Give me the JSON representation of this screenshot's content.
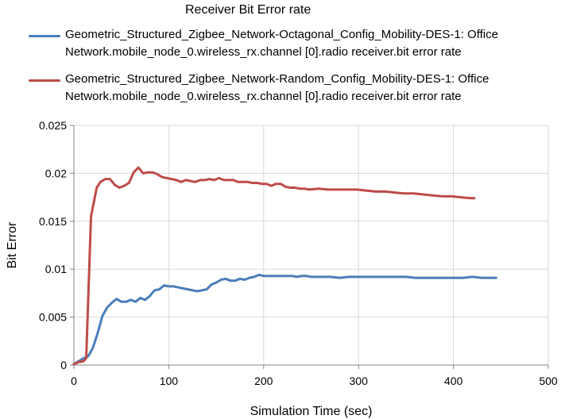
{
  "chart_data": {
    "type": "line",
    "title": "Receiver Bit Error rate",
    "xlabel": "Simulation Time (sec)",
    "ylabel": "Bit Error",
    "xlim": [
      0,
      500
    ],
    "ylim": [
      0,
      0.025
    ],
    "x_ticks": [
      "0",
      "100",
      "200",
      "300",
      "400",
      "500"
    ],
    "y_ticks": [
      "0",
      "0.005",
      "0.01",
      "0.015",
      "0.02",
      "0.025"
    ],
    "grid": true,
    "legend_position": "top",
    "series": [
      {
        "name": "Geometric_Structured_Zigbee_Network-Octagonal_Config_Mobility-DES-1: Office Network.mobile_node_0.wireless_rx.channel [0].radio receiver.bit error rate",
        "color": "#4a7ebb",
        "x": [
          0,
          5,
          10,
          15,
          20,
          25,
          30,
          35,
          40,
          45,
          50,
          55,
          60,
          65,
          70,
          75,
          80,
          85,
          90,
          95,
          100,
          105,
          110,
          115,
          120,
          125,
          130,
          135,
          140,
          145,
          150,
          155,
          160,
          165,
          170,
          175,
          180,
          185,
          190,
          195,
          200,
          205,
          210,
          215,
          220,
          225,
          230,
          235,
          240,
          245,
          250,
          260,
          270,
          280,
          290,
          300,
          310,
          320,
          330,
          340,
          350,
          360,
          370,
          380,
          390,
          400,
          410,
          420,
          430,
          440,
          445
        ],
        "values": [
          0.0001,
          0.0004,
          0.0007,
          0.0009,
          0.0018,
          0.0033,
          0.0051,
          0.006,
          0.0065,
          0.0069,
          0.0066,
          0.0066,
          0.0068,
          0.0066,
          0.007,
          0.0068,
          0.0072,
          0.0078,
          0.0079,
          0.0083,
          0.0082,
          0.0082,
          0.0081,
          0.008,
          0.0079,
          0.0078,
          0.0077,
          0.0078,
          0.0079,
          0.0084,
          0.0086,
          0.0089,
          0.009,
          0.0088,
          0.0088,
          0.009,
          0.0089,
          0.0091,
          0.0092,
          0.0094,
          0.0093,
          0.0093,
          0.0093,
          0.0093,
          0.0093,
          0.0093,
          0.0093,
          0.0092,
          0.0093,
          0.0093,
          0.0092,
          0.0092,
          0.0092,
          0.0091,
          0.0092,
          0.0092,
          0.0092,
          0.0092,
          0.0092,
          0.0092,
          0.0092,
          0.0091,
          0.0091,
          0.0091,
          0.0091,
          0.0091,
          0.0091,
          0.0092,
          0.0091,
          0.0091,
          0.0091
        ]
      },
      {
        "name": "Geometric_Structured_Zigbee_Network-Random_Config_Mobility-DES-1: Office Network.mobile_node_0.wireless_rx.channel [0].radio receiver.bit error rate",
        "color": "#be4b48",
        "x": [
          0,
          5,
          10,
          13,
          18,
          24,
          28,
          33,
          38,
          43,
          48,
          53,
          58,
          63,
          68,
          73,
          78,
          83,
          88,
          93,
          98,
          103,
          108,
          113,
          118,
          123,
          128,
          133,
          138,
          143,
          148,
          153,
          158,
          163,
          168,
          173,
          178,
          183,
          188,
          193,
          198,
          203,
          208,
          213,
          218,
          223,
          228,
          233,
          238,
          243,
          248,
          258,
          268,
          278,
          288,
          298,
          308,
          318,
          328,
          338,
          348,
          358,
          368,
          378,
          388,
          398,
          408,
          418,
          422
        ],
        "values": [
          0.0001,
          0.0003,
          0.0004,
          0.0007,
          0.0155,
          0.0185,
          0.0191,
          0.0194,
          0.0194,
          0.0188,
          0.0185,
          0.0187,
          0.019,
          0.0201,
          0.0206,
          0.02,
          0.0201,
          0.0201,
          0.0199,
          0.0196,
          0.0195,
          0.0194,
          0.0193,
          0.0191,
          0.0193,
          0.0192,
          0.0191,
          0.0193,
          0.0193,
          0.0194,
          0.0193,
          0.0195,
          0.0193,
          0.0193,
          0.0193,
          0.0191,
          0.0191,
          0.0191,
          0.019,
          0.019,
          0.0189,
          0.0189,
          0.0187,
          0.0189,
          0.0189,
          0.0186,
          0.0185,
          0.0185,
          0.0184,
          0.0184,
          0.0183,
          0.0184,
          0.0183,
          0.0183,
          0.0183,
          0.0183,
          0.0182,
          0.0181,
          0.0181,
          0.018,
          0.0179,
          0.0179,
          0.0178,
          0.0177,
          0.0176,
          0.0176,
          0.0175,
          0.0174,
          0.0174
        ]
      }
    ]
  }
}
